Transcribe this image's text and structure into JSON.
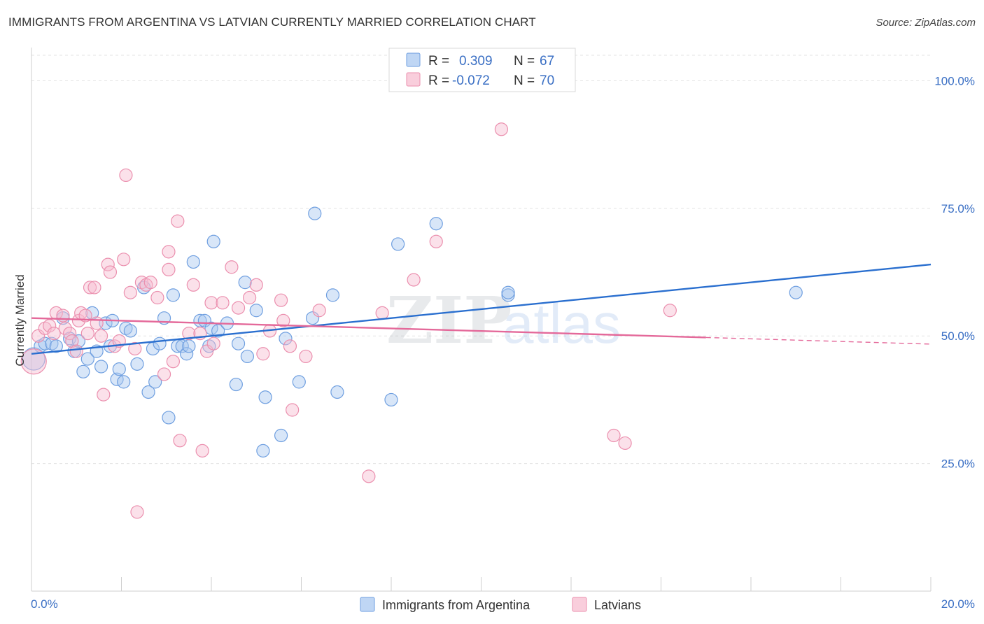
{
  "header": {
    "title": "IMMIGRANTS FROM ARGENTINA VS LATVIAN CURRENTLY MARRIED CORRELATION CHART",
    "source": "Source: ZipAtlas.com"
  },
  "watermark": {
    "zip": "ZIP",
    "atlas": "atlas"
  },
  "legend": {
    "rows": [
      {
        "r_label": "R = ",
        "r_value": "0.309",
        "n_label": "N = ",
        "n_value": "67",
        "color": "#a9c8f0",
        "stroke": "#6f9fe0"
      },
      {
        "r_label": "R = ",
        "r_value": "-0.072",
        "n_label": "N = ",
        "n_value": "70",
        "color": "#f7bdd0",
        "stroke": "#eb8fae"
      }
    ]
  },
  "bottom_legend": [
    {
      "label": "Immigrants from Argentina",
      "color": "#a9c8f0",
      "stroke": "#6f9fe0"
    },
    {
      "label": "Latvians",
      "color": "#f7bdd0",
      "stroke": "#eb8fae"
    }
  ],
  "chart_data": {
    "type": "scatter",
    "title": "IMMIGRANTS FROM ARGENTINA VS LATVIAN CURRENTLY MARRIED CORRELATION CHART",
    "xlabel": "",
    "ylabel": "Currently Married",
    "xlim": [
      0,
      20
    ],
    "ylim": [
      0,
      105
    ],
    "x_tick_labels": [
      "0.0%",
      "20.0%"
    ],
    "y_ticks": [
      25,
      50,
      75,
      100
    ],
    "y_tick_labels": [
      "25.0%",
      "50.0%",
      "75.0%",
      "100.0%"
    ],
    "grid": true,
    "legend_position": "top-center",
    "series": [
      {
        "name": "Immigrants from Argentina",
        "color": "#6f9fe0",
        "fill": "#a9c8f0",
        "line_color": "#2a6fcf",
        "trend": {
          "x1": 0,
          "y1": 46.5,
          "x2": 20,
          "y2": 64.0
        },
        "points": [
          [
            0.05,
            45.5,
            16
          ],
          [
            0.2,
            48.0,
            9
          ],
          [
            0.3,
            48.5,
            9
          ],
          [
            0.45,
            48.5,
            9
          ],
          [
            0.55,
            48.0,
            9
          ],
          [
            0.7,
            53.5,
            9
          ],
          [
            0.85,
            49.5,
            9
          ],
          [
            0.95,
            47.0,
            9
          ],
          [
            1.05,
            49.0,
            9
          ],
          [
            1.15,
            43.0,
            9
          ],
          [
            1.25,
            45.5,
            9
          ],
          [
            1.35,
            54.5,
            9
          ],
          [
            1.45,
            47.0,
            9
          ],
          [
            1.55,
            44.0,
            9
          ],
          [
            1.65,
            52.5,
            9
          ],
          [
            1.75,
            48.0,
            9
          ],
          [
            1.8,
            53.0,
            9
          ],
          [
            1.9,
            41.5,
            9
          ],
          [
            1.95,
            43.5,
            9
          ],
          [
            2.05,
            41.0,
            9
          ],
          [
            2.1,
            51.5,
            9
          ],
          [
            2.2,
            51.0,
            9
          ],
          [
            2.35,
            44.5,
            9
          ],
          [
            2.5,
            59.5,
            9
          ],
          [
            2.6,
            39.0,
            9
          ],
          [
            2.7,
            47.5,
            9
          ],
          [
            2.75,
            41.0,
            9
          ],
          [
            2.85,
            48.5,
            9
          ],
          [
            2.95,
            53.5,
            9
          ],
          [
            3.05,
            34.0,
            9
          ],
          [
            3.15,
            58.0,
            9
          ],
          [
            3.25,
            48.0,
            9
          ],
          [
            3.35,
            48.0,
            9
          ],
          [
            3.45,
            46.5,
            9
          ],
          [
            3.5,
            48.0,
            9
          ],
          [
            3.6,
            64.5,
            9
          ],
          [
            3.75,
            53.0,
            9
          ],
          [
            3.85,
            53.0,
            9
          ],
          [
            3.95,
            48.0,
            9
          ],
          [
            4.0,
            51.5,
            9
          ],
          [
            4.05,
            68.5,
            9
          ],
          [
            4.15,
            51.0,
            9
          ],
          [
            4.35,
            52.5,
            9
          ],
          [
            4.55,
            40.5,
            9
          ],
          [
            4.6,
            48.5,
            9
          ],
          [
            4.75,
            60.5,
            9
          ],
          [
            4.8,
            46.0,
            9
          ],
          [
            5.0,
            55.0,
            9
          ],
          [
            5.15,
            27.5,
            9
          ],
          [
            5.2,
            38.0,
            9
          ],
          [
            5.55,
            30.5,
            9
          ],
          [
            5.65,
            49.5,
            9
          ],
          [
            5.95,
            41.0,
            9
          ],
          [
            6.25,
            53.5,
            9
          ],
          [
            6.3,
            74.0,
            9
          ],
          [
            6.7,
            58.0,
            9
          ],
          [
            6.8,
            39.0,
            9
          ],
          [
            8.0,
            37.5,
            9
          ],
          [
            8.15,
            68.0,
            9
          ],
          [
            9.0,
            72.0,
            9
          ],
          [
            10.6,
            58.0,
            9
          ],
          [
            10.6,
            58.5,
            9
          ],
          [
            17.0,
            58.5,
            9
          ]
        ]
      },
      {
        "name": "Latvians",
        "color": "#eb8fae",
        "fill": "#f7bdd0",
        "line_color": "#e4699a",
        "trend": {
          "x1": 0,
          "y1": 53.5,
          "x2": 15.0,
          "y2": 49.7
        },
        "trend_dashed": {
          "x1": 15.0,
          "y1": 49.7,
          "x2": 20,
          "y2": 48.4
        },
        "points": [
          [
            0.05,
            45.0,
            18
          ],
          [
            0.15,
            50.0,
            9
          ],
          [
            0.3,
            51.5,
            9
          ],
          [
            0.4,
            52.0,
            9
          ],
          [
            0.5,
            50.5,
            9
          ],
          [
            0.55,
            54.5,
            9
          ],
          [
            0.7,
            54.0,
            9
          ],
          [
            0.75,
            51.5,
            9
          ],
          [
            0.85,
            50.5,
            9
          ],
          [
            0.9,
            49.0,
            9
          ],
          [
            1.0,
            47.0,
            9
          ],
          [
            1.05,
            53.0,
            9
          ],
          [
            1.1,
            54.5,
            9
          ],
          [
            1.2,
            54.0,
            9
          ],
          [
            1.25,
            50.5,
            9
          ],
          [
            1.3,
            59.5,
            9
          ],
          [
            1.4,
            59.5,
            9
          ],
          [
            1.45,
            52.5,
            9
          ],
          [
            1.55,
            50.0,
            9
          ],
          [
            1.6,
            38.5,
            9
          ],
          [
            1.7,
            64.0,
            9
          ],
          [
            1.75,
            62.5,
            9
          ],
          [
            1.85,
            48.0,
            9
          ],
          [
            1.95,
            49.0,
            9
          ],
          [
            2.05,
            65.0,
            9
          ],
          [
            2.1,
            81.5,
            9
          ],
          [
            2.2,
            58.5,
            9
          ],
          [
            2.3,
            47.5,
            9
          ],
          [
            2.35,
            15.5,
            9
          ],
          [
            2.45,
            60.5,
            9
          ],
          [
            2.55,
            60.0,
            9
          ],
          [
            2.65,
            60.5,
            9
          ],
          [
            2.8,
            57.5,
            9
          ],
          [
            2.95,
            42.5,
            9
          ],
          [
            3.05,
            66.5,
            9
          ],
          [
            3.05,
            63.0,
            9
          ],
          [
            3.15,
            45.0,
            9
          ],
          [
            3.25,
            72.5,
            9
          ],
          [
            3.3,
            29.5,
            9
          ],
          [
            3.5,
            50.5,
            9
          ],
          [
            3.6,
            60.0,
            9
          ],
          [
            3.75,
            50.5,
            9
          ],
          [
            3.8,
            27.5,
            9
          ],
          [
            3.9,
            47.0,
            9
          ],
          [
            4.0,
            56.5,
            9
          ],
          [
            4.05,
            48.5,
            9
          ],
          [
            4.25,
            56.5,
            9
          ],
          [
            4.45,
            63.5,
            9
          ],
          [
            4.6,
            55.5,
            9
          ],
          [
            4.85,
            57.5,
            9
          ],
          [
            5.0,
            60.0,
            9
          ],
          [
            5.15,
            46.5,
            9
          ],
          [
            5.3,
            51.0,
            9
          ],
          [
            5.55,
            57.0,
            9
          ],
          [
            5.6,
            53.0,
            9
          ],
          [
            5.75,
            48.0,
            9
          ],
          [
            5.8,
            35.5,
            9
          ],
          [
            6.1,
            46.0,
            9
          ],
          [
            6.4,
            55.0,
            9
          ],
          [
            7.5,
            22.5,
            9
          ],
          [
            7.8,
            54.5,
            9
          ],
          [
            8.5,
            61.0,
            9
          ],
          [
            9.0,
            68.5,
            9
          ],
          [
            10.45,
            90.5,
            9
          ],
          [
            12.95,
            30.5,
            9
          ],
          [
            13.2,
            29.0,
            9
          ],
          [
            14.2,
            55.0,
            9
          ]
        ]
      }
    ]
  }
}
